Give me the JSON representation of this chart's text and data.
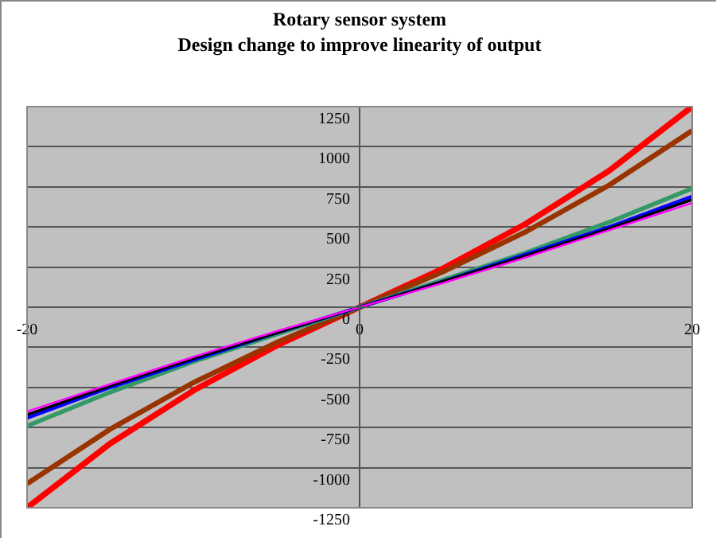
{
  "chart_data": {
    "type": "line",
    "title": "Rotary sensor system",
    "subtitle": "Design change to improve linearity of output",
    "x": [
      -20,
      -15,
      -10,
      -5,
      0,
      5,
      10,
      15,
      20
    ],
    "series": [
      {
        "color": "#ff0000",
        "values": [
          -1250,
          -850,
          -520,
          -240,
          0,
          240,
          520,
          850,
          1250
        ]
      },
      {
        "color": "#993300",
        "values": [
          -1100,
          -760,
          -470,
          -220,
          0,
          220,
          470,
          760,
          1100
        ]
      },
      {
        "color": "#339966",
        "values": [
          -740,
          -530,
          -340,
          -170,
          0,
          170,
          340,
          530,
          740
        ]
      },
      {
        "color": "#0000ff",
        "values": [
          -690,
          -500,
          -330,
          -160,
          0,
          160,
          330,
          500,
          690
        ]
      },
      {
        "color": "#000000",
        "values": [
          -670,
          -490,
          -320,
          -160,
          0,
          160,
          320,
          490,
          670
        ]
      },
      {
        "color": "#ff00ff",
        "values": [
          -650,
          -480,
          -310,
          -150,
          0,
          150,
          310,
          480,
          650
        ]
      }
    ],
    "xlim": [
      -20,
      20
    ],
    "xticks": [
      -20,
      0,
      20
    ],
    "ylim": [
      -1250,
      1250
    ],
    "yticks": [
      -1250,
      -1000,
      -750,
      -500,
      -250,
      0,
      250,
      500,
      750,
      1000,
      1250
    ],
    "grid": "y",
    "marker": "none",
    "line_style": "solid"
  }
}
